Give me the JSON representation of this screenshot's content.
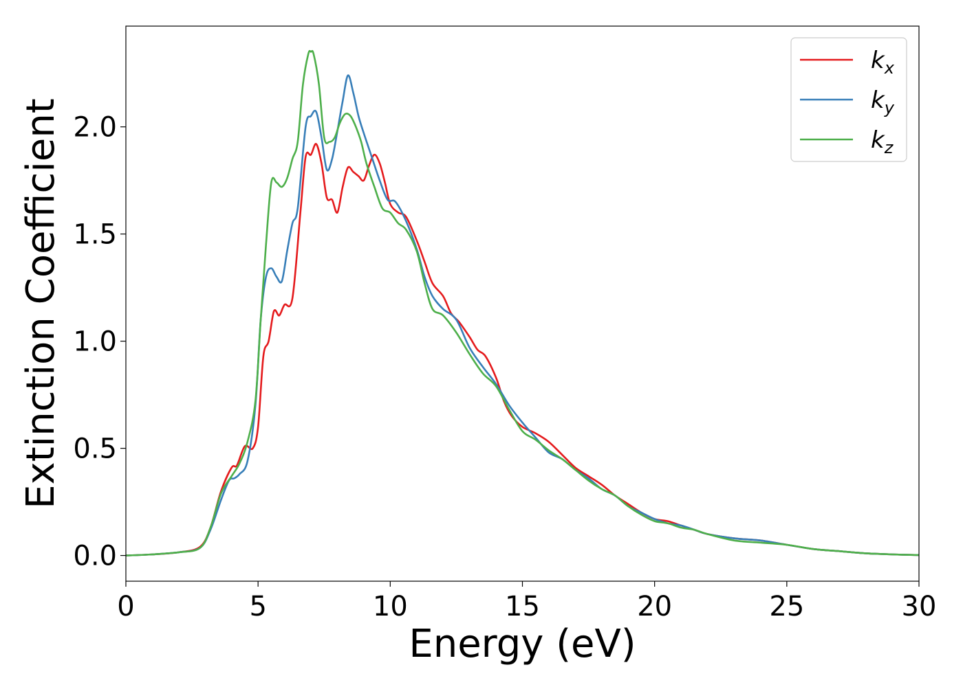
{
  "chart_data": {
    "type": "line",
    "xlabel": "Energy (eV)",
    "ylabel": "Extinction Coefficient",
    "xlim": [
      0,
      30
    ],
    "ylim": [
      -0.12,
      2.47
    ],
    "xticks": [
      0,
      5,
      10,
      15,
      20,
      25,
      30
    ],
    "yticks": [
      0.0,
      0.5,
      1.0,
      1.5,
      2.0
    ],
    "xtick_labels": [
      "0",
      "5",
      "10",
      "15",
      "20",
      "25",
      "30"
    ],
    "ytick_labels": [
      "0.0",
      "0.5",
      "1.0",
      "1.5",
      "2.0"
    ],
    "grid": false,
    "legend": "top-right",
    "series": [
      {
        "name": "k_x",
        "label_main": "k",
        "label_sub": "x",
        "color": "#e41a1c",
        "x": [
          0,
          1,
          2,
          2.8,
          3.2,
          3.6,
          4.0,
          4.2,
          4.5,
          4.8,
          5.0,
          5.2,
          5.4,
          5.6,
          5.8,
          6.0,
          6.3,
          6.6,
          6.8,
          7.0,
          7.2,
          7.4,
          7.6,
          7.8,
          8.0,
          8.2,
          8.4,
          8.6,
          8.8,
          9.0,
          9.2,
          9.4,
          9.6,
          9.8,
          10.0,
          10.3,
          10.6,
          11.0,
          11.3,
          11.6,
          12.0,
          12.3,
          12.6,
          13.0,
          13.3,
          13.6,
          14.0,
          14.3,
          14.6,
          15.0,
          15.5,
          16.0,
          16.5,
          17.0,
          17.5,
          18.0,
          18.5,
          19.0,
          19.5,
          20.0,
          20.5,
          21.0,
          21.5,
          22.0,
          23.0,
          24.0,
          25.0,
          26.0,
          27.0,
          28.0,
          29.0,
          30.0
        ],
        "y": [
          0.0,
          0.005,
          0.015,
          0.04,
          0.13,
          0.3,
          0.41,
          0.42,
          0.51,
          0.5,
          0.6,
          0.93,
          1.0,
          1.14,
          1.12,
          1.17,
          1.2,
          1.6,
          1.86,
          1.87,
          1.92,
          1.83,
          1.67,
          1.66,
          1.6,
          1.72,
          1.81,
          1.79,
          1.77,
          1.75,
          1.82,
          1.87,
          1.83,
          1.74,
          1.64,
          1.6,
          1.58,
          1.47,
          1.37,
          1.27,
          1.21,
          1.13,
          1.09,
          1.02,
          0.96,
          0.93,
          0.83,
          0.72,
          0.65,
          0.6,
          0.57,
          0.53,
          0.47,
          0.41,
          0.37,
          0.33,
          0.28,
          0.24,
          0.2,
          0.17,
          0.16,
          0.14,
          0.12,
          0.1,
          0.08,
          0.07,
          0.05,
          0.03,
          0.02,
          0.01,
          0.005,
          0.002
        ]
      },
      {
        "name": "k_y",
        "label_main": "k",
        "label_sub": "y",
        "color": "#377eb8",
        "x": [
          0,
          1,
          2,
          2.8,
          3.2,
          3.6,
          3.9,
          4.1,
          4.3,
          4.6,
          4.9,
          5.1,
          5.3,
          5.5,
          5.7,
          5.9,
          6.1,
          6.3,
          6.5,
          6.8,
          7.0,
          7.2,
          7.4,
          7.6,
          7.8,
          8.0,
          8.2,
          8.4,
          8.6,
          8.8,
          9.0,
          9.3,
          9.6,
          9.9,
          10.2,
          10.6,
          11.0,
          11.3,
          11.6,
          12.0,
          12.5,
          13.0,
          13.5,
          14.0,
          14.5,
          15.0,
          15.5,
          16.0,
          16.5,
          17.0,
          17.5,
          18.0,
          18.5,
          19.0,
          19.5,
          20.0,
          20.5,
          21.0,
          21.5,
          22.0,
          23.0,
          24.0,
          25.0,
          26.0,
          27.0,
          28.0,
          29.0,
          30.0
        ],
        "y": [
          0.0,
          0.005,
          0.015,
          0.035,
          0.12,
          0.26,
          0.35,
          0.36,
          0.38,
          0.44,
          0.7,
          1.1,
          1.3,
          1.34,
          1.3,
          1.28,
          1.42,
          1.55,
          1.62,
          2.0,
          2.05,
          2.07,
          1.95,
          1.8,
          1.85,
          1.98,
          2.12,
          2.24,
          2.16,
          2.05,
          1.97,
          1.86,
          1.75,
          1.66,
          1.65,
          1.56,
          1.43,
          1.3,
          1.21,
          1.15,
          1.1,
          0.97,
          0.88,
          0.8,
          0.7,
          0.62,
          0.55,
          0.48,
          0.45,
          0.4,
          0.36,
          0.31,
          0.28,
          0.23,
          0.2,
          0.17,
          0.15,
          0.14,
          0.12,
          0.1,
          0.08,
          0.07,
          0.05,
          0.03,
          0.02,
          0.01,
          0.005,
          0.002
        ]
      },
      {
        "name": "k_z",
        "label_main": "k",
        "label_sub": "z",
        "color": "#4daf4a",
        "x": [
          0,
          1,
          2,
          2.8,
          3.2,
          3.6,
          4.0,
          4.3,
          4.6,
          4.9,
          5.1,
          5.3,
          5.5,
          5.7,
          5.9,
          6.1,
          6.3,
          6.5,
          6.7,
          6.9,
          7.0,
          7.1,
          7.3,
          7.5,
          7.7,
          7.9,
          8.1,
          8.3,
          8.5,
          8.7,
          8.9,
          9.1,
          9.4,
          9.7,
          10.0,
          10.3,
          10.6,
          11.0,
          11.3,
          11.6,
          12.0,
          12.5,
          13.0,
          13.5,
          14.0,
          14.5,
          15.0,
          15.5,
          16.0,
          16.5,
          17.0,
          17.5,
          18.0,
          18.5,
          19.0,
          19.5,
          20.0,
          20.5,
          21.0,
          21.5,
          22.0,
          23.0,
          24.0,
          25.0,
          26.0,
          27.0,
          28.0,
          29.0,
          30.0
        ],
        "y": [
          0.0,
          0.005,
          0.015,
          0.035,
          0.13,
          0.29,
          0.37,
          0.43,
          0.53,
          0.72,
          1.1,
          1.45,
          1.74,
          1.74,
          1.72,
          1.76,
          1.85,
          1.93,
          2.2,
          2.34,
          2.35,
          2.34,
          2.2,
          1.95,
          1.93,
          1.95,
          2.02,
          2.06,
          2.05,
          2.0,
          1.93,
          1.83,
          1.72,
          1.62,
          1.6,
          1.55,
          1.52,
          1.42,
          1.27,
          1.15,
          1.12,
          1.04,
          0.94,
          0.85,
          0.79,
          0.68,
          0.58,
          0.54,
          0.49,
          0.45,
          0.4,
          0.35,
          0.31,
          0.28,
          0.23,
          0.19,
          0.16,
          0.15,
          0.13,
          0.12,
          0.1,
          0.07,
          0.06,
          0.05,
          0.03,
          0.02,
          0.01,
          0.005,
          0.002
        ]
      }
    ]
  }
}
